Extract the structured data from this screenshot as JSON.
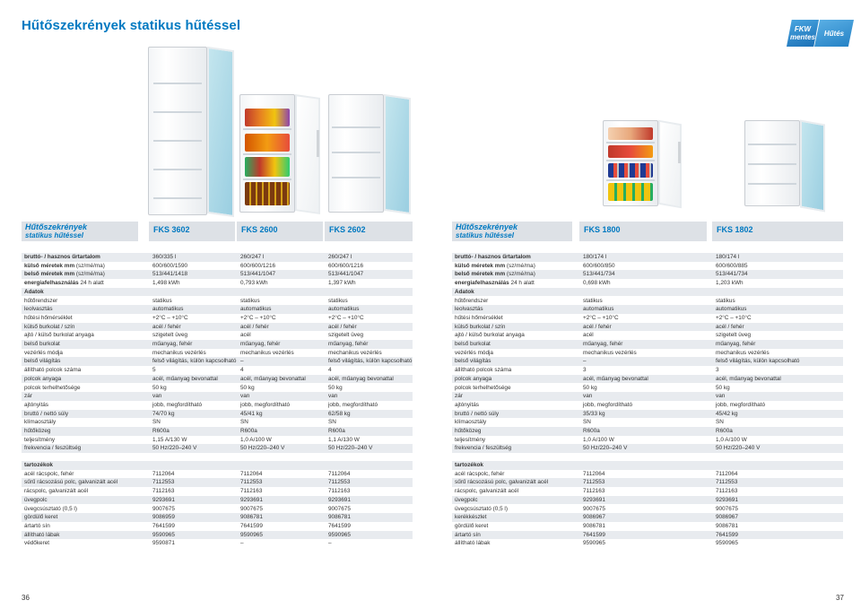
{
  "title": "Hűtőszekrények statikus hűtéssel",
  "badges": {
    "left_line1": "FKW",
    "left_line2": "mentes",
    "right": "Hűtés"
  },
  "left": {
    "system_title": "Hűtőszekrények",
    "system_sub": "statikus hűtéssel",
    "models": [
      "FKS 3602",
      "FKS 2600",
      "FKS 2602"
    ],
    "rows": [
      {
        "label": "bruttó- / hasznos űrtartalom",
        "bold": true,
        "vals": [
          "360/335 l",
          "260/247 l",
          "260/247 l"
        ]
      },
      {
        "label": "külső méretek mm",
        "suffix": " (sz/mé/ma)",
        "bold": true,
        "vals": [
          "600/600/1590",
          "600/600/1216",
          "600/600/1216"
        ]
      },
      {
        "label": "belső méretek mm",
        "suffix": " (sz/mé/ma)",
        "bold": true,
        "vals": [
          "513/441/1418",
          "513/441/1047",
          "513/441/1047"
        ]
      },
      {
        "label": "energiafelhasználás",
        "suffix": " 24 h alatt",
        "bold": true,
        "vals": [
          "1,498 kWh",
          "0,793 kWh",
          "1,397 kWh"
        ]
      },
      {
        "label": "Adatok",
        "bold": true,
        "vals": [
          "",
          "",
          ""
        ]
      },
      {
        "label": "hűtőrendszer",
        "vals": [
          "statikus",
          "statikus",
          "statikus"
        ]
      },
      {
        "label": "leolvasztás",
        "vals": [
          "automatikus",
          "automatikus",
          "automatikus"
        ]
      },
      {
        "label": "hűtési hőmérséklet",
        "vals": [
          "+2°C – +10°C",
          "+2°C – +10°C",
          "+2°C – +10°C"
        ]
      },
      {
        "label": "külső burkolat / szín",
        "vals": [
          "acél / fehér",
          "acél / fehér",
          "acél / fehér"
        ]
      },
      {
        "label": "ajtó / külső burkolat anyaga",
        "vals": [
          "szigetelt üveg",
          "acél",
          "szigetelt üveg"
        ]
      },
      {
        "label": "belső burkolat",
        "vals": [
          "műanyag, fehér",
          "műanyag, fehér",
          "műanyag, fehér"
        ]
      },
      {
        "label": "vezérlés módja",
        "vals": [
          "mechanikus vezérlés",
          "mechanikus vezérlés",
          "mechanikus vezérlés"
        ]
      },
      {
        "label": "belső világítás",
        "vals": [
          "felső világítás, külön kapcsolható",
          "–",
          "felső világítás, külön kapcsolható"
        ]
      },
      {
        "label": "állítható polcok száma",
        "vals": [
          "5",
          "4",
          "4"
        ]
      },
      {
        "label": "polcok anyaga",
        "vals": [
          "acél, műanyag bevonattal",
          "acél, műanyag bevonattal",
          "acél, műanyag bevonattal"
        ]
      },
      {
        "label": "polcok terhelhetősége",
        "vals": [
          "50 kg",
          "50 kg",
          "50 kg"
        ]
      },
      {
        "label": "zár",
        "vals": [
          "van",
          "van",
          "van"
        ]
      },
      {
        "label": "ajtónyitás",
        "vals": [
          "jobb, megfordítható",
          "jobb, megfordítható",
          "jobb, megfordítható"
        ]
      },
      {
        "label": "bruttó / nettó súly",
        "vals": [
          "74/70 kg",
          "45/41 kg",
          "62/58 kg"
        ]
      },
      {
        "label": "klímaosztály",
        "vals": [
          "SN",
          "SN",
          "SN"
        ]
      },
      {
        "label": "hűtőközeg",
        "vals": [
          "R600a",
          "R600a",
          "R600a"
        ]
      },
      {
        "label": "teljesítmény",
        "vals": [
          "1,15 A/130 W",
          "1,0 A/100 W",
          "1,1 A/130 W"
        ]
      },
      {
        "label": "frekvencia / feszültség",
        "vals": [
          "50 Hz/220–240 V",
          "50 Hz/220–240 V",
          "50 Hz/220–240 V"
        ]
      }
    ],
    "accessories": [
      {
        "label": "tartozékok",
        "bold": true,
        "vals": [
          "",
          "",
          ""
        ]
      },
      {
        "label": "acél rácspolc, fehér",
        "vals": [
          "7112064",
          "7112064",
          "7112064"
        ]
      },
      {
        "label": "sűrű rácsozású polc, galvanizált acél",
        "vals": [
          "7112553",
          "7112553",
          "7112553"
        ]
      },
      {
        "label": "rácspolc, galvanizált acél",
        "vals": [
          "7112163",
          "7112163",
          "7112163"
        ]
      },
      {
        "label": "üvegpolc",
        "vals": [
          "9293691",
          "9293691",
          "9293691"
        ]
      },
      {
        "label": "üvegcsúsztató (0,5 l)",
        "vals": [
          "9007675",
          "9007675",
          "9007675"
        ]
      },
      {
        "label": "gördülő keret",
        "vals": [
          "9086959",
          "9086781",
          "9086781"
        ]
      },
      {
        "label": "ártartó sín",
        "vals": [
          "7641599",
          "7641599",
          "7641599"
        ]
      },
      {
        "label": "állítható lábak",
        "vals": [
          "9590965",
          "9590965",
          "9590965"
        ]
      },
      {
        "label": "védőkeret",
        "vals": [
          "9590871",
          "–",
          "–"
        ]
      }
    ],
    "page_number": "36"
  },
  "right": {
    "system_title": "Hűtőszekrények",
    "system_sub": "statikus hűtéssel",
    "models": [
      "FKS 1800",
      "FKS 1802"
    ],
    "rows": [
      {
        "label": "bruttó- / hasznos űrtartalom",
        "bold": true,
        "vals": [
          "180/174 l",
          "180/174 l"
        ]
      },
      {
        "label": "külső méretek mm",
        "suffix": " (sz/mé/ma)",
        "bold": true,
        "vals": [
          "600/600/850",
          "600/600/885"
        ]
      },
      {
        "label": "belső méretek mm",
        "suffix": " (sz/mé/ma)",
        "bold": true,
        "vals": [
          "513/441/734",
          "513/441/734"
        ]
      },
      {
        "label": "energiafelhasználás",
        "suffix": " 24 h alatt",
        "bold": true,
        "vals": [
          "0,698 kWh",
          "1,203 kWh"
        ]
      },
      {
        "label": "Adatok",
        "bold": true,
        "vals": [
          "",
          ""
        ]
      },
      {
        "label": "hűtőrendszer",
        "vals": [
          "statikus",
          "statikus"
        ]
      },
      {
        "label": "leolvasztás",
        "vals": [
          "automatikus",
          "automatikus"
        ]
      },
      {
        "label": "hűtési hőmérséklet",
        "vals": [
          "+2°C – +10°C",
          "+2°C – +10°C"
        ]
      },
      {
        "label": "külső burkolat / szín",
        "vals": [
          "acél / fehér",
          "acél / fehér"
        ]
      },
      {
        "label": "ajtó / külső burkolat anyaga",
        "vals": [
          "acél",
          "szigetelt üveg"
        ]
      },
      {
        "label": "belső burkolat",
        "vals": [
          "műanyag, fehér",
          "műanyag, fehér"
        ]
      },
      {
        "label": "vezérlés módja",
        "vals": [
          "mechanikus vezérlés",
          "mechanikus vezérlés"
        ]
      },
      {
        "label": "belső világítás",
        "vals": [
          "–",
          "felső világítás, külön kapcsolható"
        ]
      },
      {
        "label": "állítható polcok száma",
        "vals": [
          "3",
          "3"
        ]
      },
      {
        "label": "polcok anyaga",
        "vals": [
          "acél, műanyag bevonattal",
          "acél, műanyag bevonattal"
        ]
      },
      {
        "label": "polcok terhelhetősége",
        "vals": [
          "50 kg",
          "50 kg"
        ]
      },
      {
        "label": "zár",
        "vals": [
          "van",
          "van"
        ]
      },
      {
        "label": "ajtónyitás",
        "vals": [
          "jobb, megfordítható",
          "jobb, megfordítható"
        ]
      },
      {
        "label": "bruttó / nettó súly",
        "vals": [
          "35/33 kg",
          "45/42 kg"
        ]
      },
      {
        "label": "klímaosztály",
        "vals": [
          "SN",
          "SN"
        ]
      },
      {
        "label": "hűtőközeg",
        "vals": [
          "R600a",
          "R600a"
        ]
      },
      {
        "label": "teljesítmény",
        "vals": [
          "1,0 A/100 W",
          "1,0 A/100 W"
        ]
      },
      {
        "label": "frekvencia / feszültség",
        "vals": [
          "50 Hz/220–240 V",
          "50 Hz/220–240 V"
        ]
      }
    ],
    "accessories": [
      {
        "label": "tartozékok",
        "bold": true,
        "vals": [
          "",
          ""
        ]
      },
      {
        "label": "acél rácspolc, fehér",
        "vals": [
          "7112064",
          "7112064"
        ]
      },
      {
        "label": "sűrű rácsozású polc, galvanizált acél",
        "vals": [
          "7112553",
          "7112553"
        ]
      },
      {
        "label": "rácspolc, galvanizált acél",
        "vals": [
          "7112163",
          "7112163"
        ]
      },
      {
        "label": "üvegpolc",
        "vals": [
          "9293691",
          "9293691"
        ]
      },
      {
        "label": "üvegcsúsztató (0,5 l)",
        "vals": [
          "9007675",
          "9007675"
        ]
      },
      {
        "label": "kerékkészlet",
        "vals": [
          "9086967",
          "9086967"
        ]
      },
      {
        "label": "gördülő keret",
        "vals": [
          "9086781",
          "9086781"
        ]
      },
      {
        "label": "ártartó sín",
        "vals": [
          "7641599",
          "7641599"
        ]
      },
      {
        "label": "állítható lábak",
        "vals": [
          "9590965",
          "9590965"
        ]
      }
    ],
    "page_number": "37"
  }
}
